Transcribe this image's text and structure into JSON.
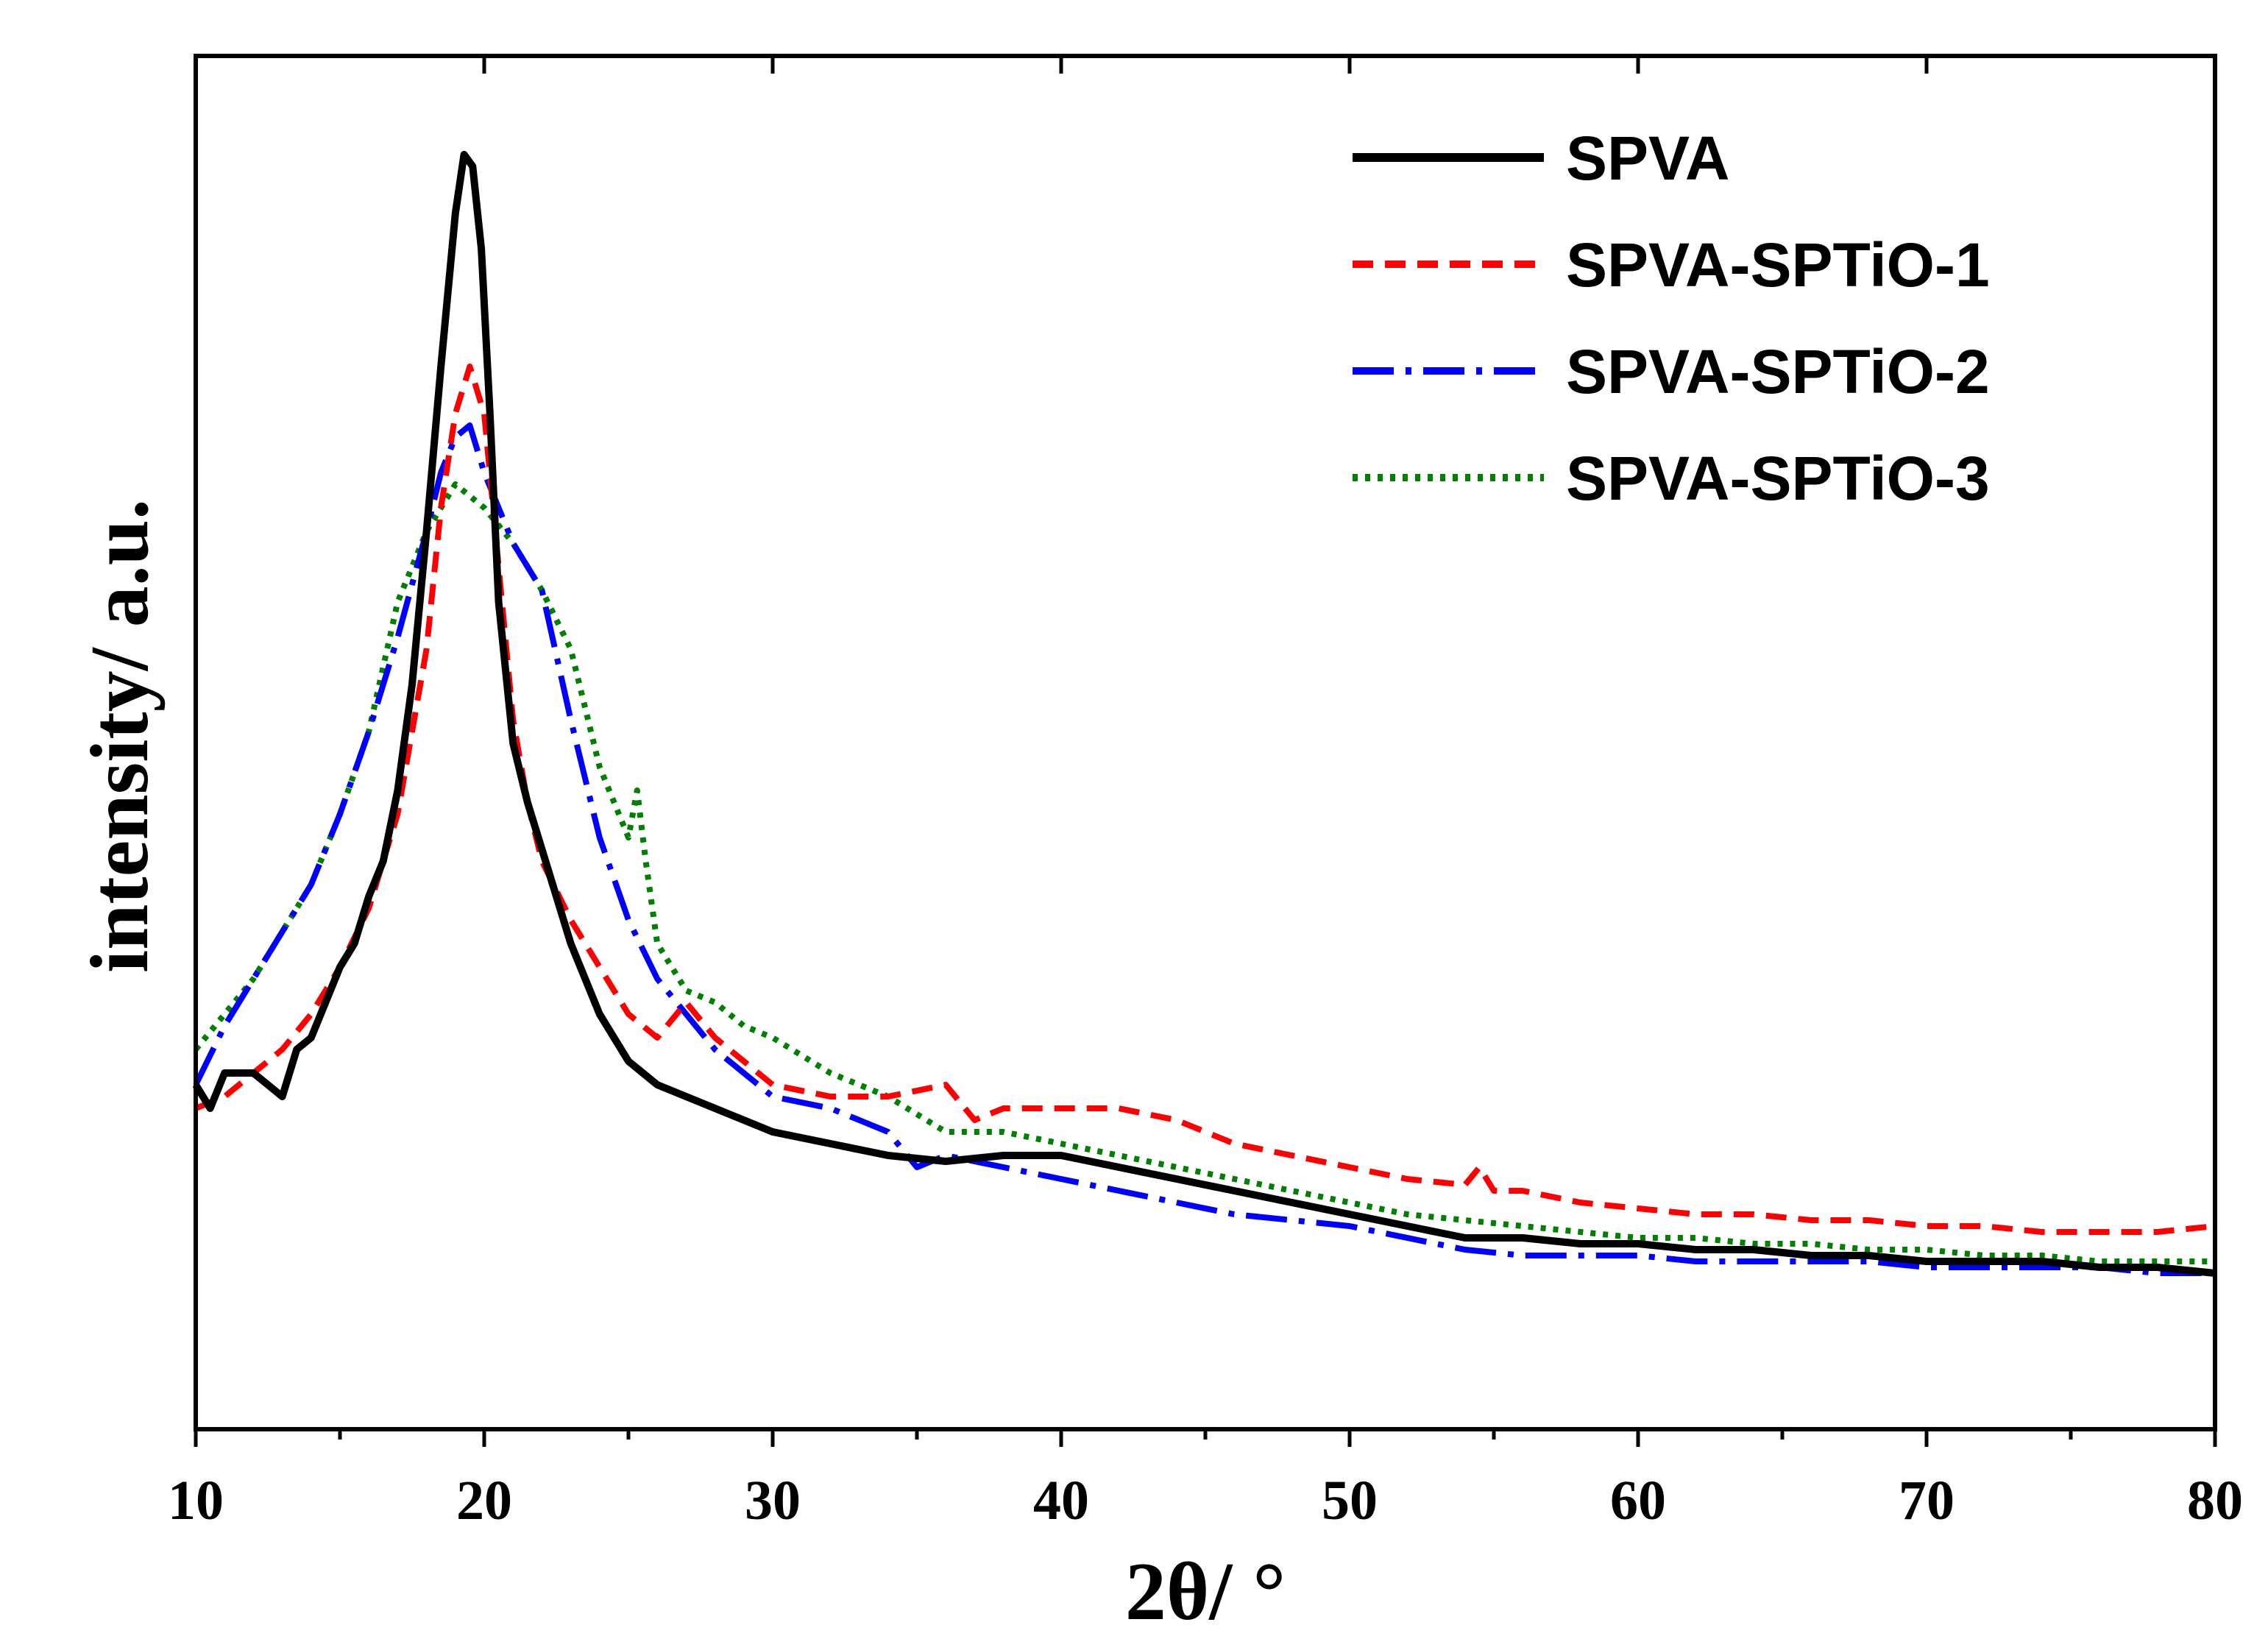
{
  "chart_data": {
    "type": "line",
    "title": "",
    "xlabel": "2θ/ °",
    "ylabel": "intensity/ a.u.",
    "xlim": [
      10,
      80
    ],
    "ylim": [
      0,
      100
    ],
    "x_ticks": [
      10,
      20,
      30,
      40,
      50,
      60,
      70,
      80
    ],
    "x_tick_labels": [
      "10",
      "20",
      "30",
      "40",
      "50",
      "60",
      "70",
      "80"
    ],
    "y_ticks_shown": false,
    "legend_position": "top-right",
    "grid": false,
    "series": [
      {
        "name": "SPVA",
        "color": "#000000",
        "style": "solid",
        "x": [
          10,
          10.5,
          11,
          11.5,
          12,
          12.5,
          13,
          13.5,
          14,
          14.5,
          15,
          15.5,
          16,
          16.5,
          17,
          17.5,
          18,
          18.5,
          19,
          19.3,
          19.6,
          19.9,
          20.2,
          20.5,
          21,
          21.5,
          22,
          22.5,
          23,
          23.5,
          24,
          25,
          26,
          27,
          28,
          29,
          30,
          32,
          34,
          36,
          38,
          40,
          42,
          44,
          46,
          48,
          50,
          52,
          54,
          56,
          58,
          60,
          62,
          64,
          66,
          68,
          70,
          72,
          74,
          76,
          78,
          80
        ],
        "y": [
          21,
          19,
          22,
          22,
          22,
          21,
          20,
          24,
          25,
          28,
          31,
          33,
          37,
          40,
          46,
          55,
          68,
          82,
          95,
          100,
          99,
          92,
          78,
          62,
          50,
          45,
          41,
          37,
          33,
          30,
          27,
          23,
          21,
          20,
          19,
          18,
          17,
          16,
          15,
          14.5,
          15,
          15,
          14,
          13,
          12,
          11,
          10,
          9,
          8,
          8,
          7.5,
          7.5,
          7,
          7,
          6.5,
          6.5,
          6,
          6,
          6,
          5.5,
          5.5,
          5
        ]
      },
      {
        "name": "SPVA-SPTiO-1",
        "color": "#ff0000",
        "style": "dashed",
        "x": [
          10,
          11,
          12,
          13,
          14,
          15,
          16,
          17,
          18,
          18.5,
          19,
          19.5,
          20,
          20.5,
          21,
          21.5,
          22,
          23,
          24,
          25,
          26,
          27,
          28,
          29,
          30,
          32,
          34,
          36,
          37,
          38,
          40,
          42,
          44,
          45,
          46,
          48,
          50,
          52,
          54,
          54.5,
          55,
          56,
          58,
          60,
          62,
          64,
          66,
          68,
          70,
          72,
          74,
          76,
          78,
          80
        ],
        "y": [
          19,
          20,
          22,
          24,
          27,
          31,
          36,
          44,
          58,
          70,
          78,
          82,
          78,
          65,
          52,
          45,
          40,
          35,
          31,
          27,
          25,
          28,
          25,
          23,
          21,
          20,
          20,
          21,
          18,
          19,
          19,
          19,
          18,
          17,
          16,
          15,
          14,
          13,
          12.5,
          14,
          12,
          12,
          11,
          10.5,
          10,
          10,
          9.5,
          9.5,
          9,
          9,
          8.5,
          8.5,
          8.5,
          9
        ]
      },
      {
        "name": "SPVA-SPTiO-2",
        "color": "#0000ff",
        "style": "dashdot",
        "x": [
          10,
          11,
          12,
          13,
          14,
          15,
          16,
          17,
          18,
          18.5,
          19,
          19.5,
          20,
          21,
          22,
          23,
          24,
          25,
          26,
          27,
          28,
          29,
          30,
          32,
          34,
          35,
          36,
          38,
          40,
          42,
          44,
          46,
          48,
          50,
          52,
          54,
          56,
          58,
          60,
          62,
          64,
          66,
          68,
          70,
          72,
          74,
          76,
          78,
          80
        ],
        "y": [
          21,
          26,
          30,
          34,
          38,
          44,
          51,
          59,
          68,
          73,
          76,
          77,
          73,
          67,
          63,
          52,
          42,
          35,
          30,
          27,
          24,
          22,
          20,
          19,
          17,
          14,
          15,
          14,
          13,
          12,
          11,
          10,
          9.5,
          9,
          8,
          7,
          6.5,
          6.5,
          6.5,
          6,
          6,
          6,
          6,
          5.5,
          5.5,
          5.5,
          5.5,
          5,
          5
        ]
      },
      {
        "name": "SPVA-SPTiO-3",
        "color": "#008000",
        "style": "dotted",
        "x": [
          10,
          11,
          12,
          13,
          14,
          15,
          16,
          17,
          18,
          19,
          20,
          21,
          22,
          23,
          24,
          25,
          25.3,
          25.6,
          26,
          27,
          28,
          29,
          30,
          32,
          34,
          36,
          38,
          40,
          42,
          44,
          46,
          48,
          50,
          52,
          54,
          56,
          58,
          60,
          62,
          64,
          66,
          68,
          70,
          72,
          74,
          76,
          78,
          80
        ],
        "y": [
          24,
          27,
          30,
          34,
          38,
          44,
          51,
          62,
          68,
          72,
          70,
          67,
          63,
          58,
          48,
          42,
          46,
          40,
          33,
          29,
          28,
          26,
          25,
          22,
          20,
          17,
          17,
          16,
          15,
          14,
          13,
          12,
          11,
          10,
          9.5,
          9,
          8.5,
          8,
          8,
          7.5,
          7.5,
          7,
          7,
          6.5,
          6.5,
          6,
          6,
          6
        ]
      }
    ]
  }
}
